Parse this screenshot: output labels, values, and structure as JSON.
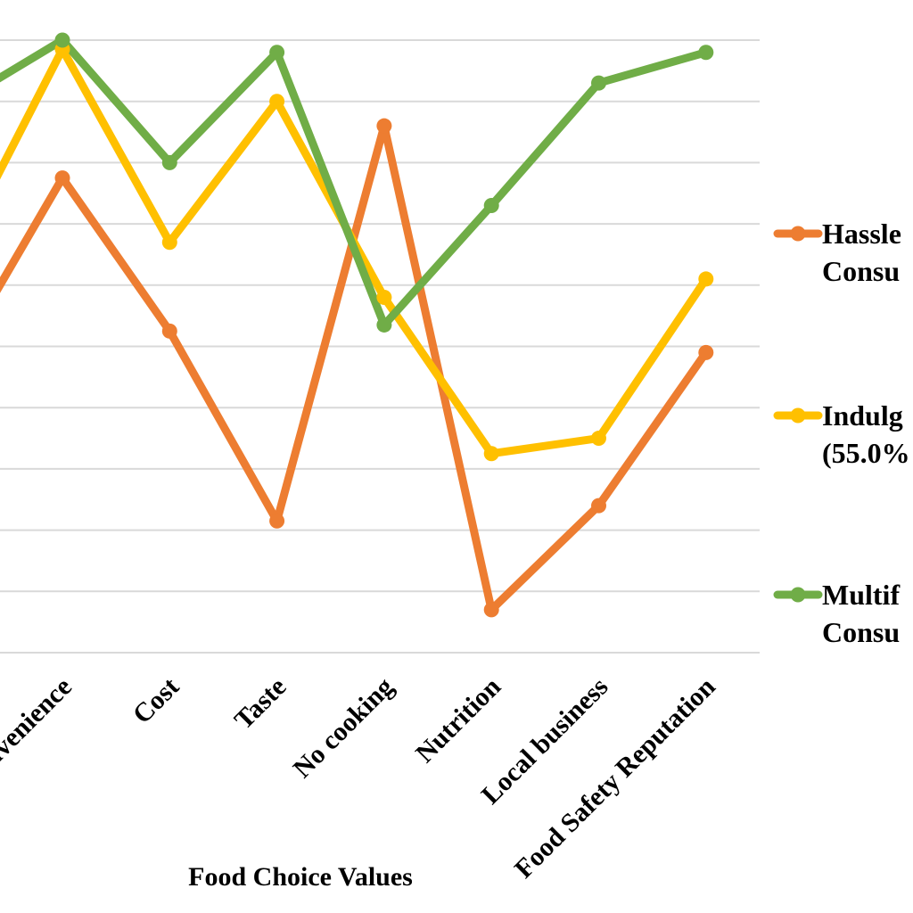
{
  "chart_data": {
    "type": "line",
    "xlabel": "Food Choice Values",
    "ylabel": "",
    "categories": [
      "Convenience",
      "Cost",
      "Taste",
      "No cooking",
      "Nutrition",
      "Local business",
      "Food Safety Reputation"
    ],
    "x_partial_left": {
      "y_hassle": 4.75,
      "y_indulg": 6.45,
      "y_multif": 8.95
    },
    "ylim": [
      0,
      10
    ],
    "grid": true,
    "legend_position": "right",
    "series": [
      {
        "name": "Hassle",
        "name_line2": "Consu",
        "color": "#ED7D31",
        "values": [
          7.75,
          5.25,
          2.15,
          8.6,
          0.7,
          2.4,
          4.9
        ]
      },
      {
        "name": "Indulg",
        "name_line2": "(55.0%",
        "color": "#FFC000",
        "values": [
          9.85,
          6.7,
          9.0,
          5.8,
          3.25,
          3.5,
          6.1
        ]
      },
      {
        "name": "Multif",
        "name_line2": "Consu",
        "color": "#70AD47",
        "values": [
          10.0,
          8.0,
          9.8,
          5.35,
          7.3,
          9.3,
          9.8
        ]
      }
    ]
  }
}
